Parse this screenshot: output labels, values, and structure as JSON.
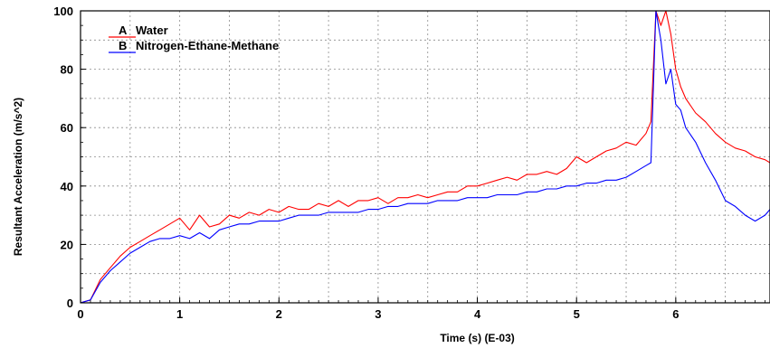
{
  "chart_data": {
    "type": "line",
    "title": "",
    "xlabel": "Time (s) (E-03)",
    "ylabel": "Resultant Acceleration (m/s^2)",
    "xlim": [
      0,
      6.95
    ],
    "ylim": [
      0,
      100
    ],
    "xticks": [
      "0",
      "1",
      "2",
      "3",
      "4",
      "5",
      "6"
    ],
    "yticks": [
      "0",
      "20",
      "40",
      "60",
      "80",
      "100"
    ],
    "grid": true,
    "legend_position": "top-left",
    "series": [
      {
        "marker": "A",
        "name": "Water",
        "color": "#ff0000",
        "x": [
          0,
          0.1,
          0.2,
          0.3,
          0.4,
          0.5,
          0.6,
          0.7,
          0.8,
          0.9,
          1.0,
          1.1,
          1.2,
          1.3,
          1.4,
          1.5,
          1.6,
          1.7,
          1.8,
          1.9,
          2.0,
          2.1,
          2.2,
          2.3,
          2.4,
          2.5,
          2.6,
          2.7,
          2.8,
          2.9,
          3.0,
          3.1,
          3.2,
          3.3,
          3.4,
          3.5,
          3.6,
          3.7,
          3.8,
          3.9,
          4.0,
          4.1,
          4.2,
          4.3,
          4.4,
          4.5,
          4.6,
          4.7,
          4.8,
          4.9,
          5.0,
          5.1,
          5.2,
          5.3,
          5.4,
          5.5,
          5.6,
          5.7,
          5.75,
          5.8,
          5.85,
          5.9,
          5.95,
          6.0,
          6.05,
          6.1,
          6.2,
          6.3,
          6.4,
          6.5,
          6.6,
          6.7,
          6.8,
          6.9,
          6.95
        ],
        "y": [
          0,
          1,
          8,
          12,
          16,
          19,
          21,
          23,
          25,
          27,
          29,
          25,
          30,
          26,
          27,
          30,
          29,
          31,
          30,
          32,
          31,
          33,
          32,
          32,
          34,
          33,
          35,
          33,
          35,
          35,
          36,
          34,
          36,
          36,
          37,
          36,
          37,
          38,
          38,
          40,
          40,
          41,
          42,
          43,
          42,
          44,
          44,
          45,
          44,
          46,
          50,
          48,
          50,
          52,
          53,
          55,
          54,
          58,
          62,
          100,
          95,
          100,
          92,
          80,
          74,
          70,
          65,
          62,
          58,
          55,
          53,
          52,
          50,
          49,
          48
        ]
      },
      {
        "marker": "B",
        "name": "Nitrogen-Ethane-Methane",
        "color": "#0000ff",
        "x": [
          0,
          0.1,
          0.2,
          0.3,
          0.4,
          0.5,
          0.6,
          0.7,
          0.8,
          0.9,
          1.0,
          1.1,
          1.2,
          1.3,
          1.4,
          1.5,
          1.6,
          1.7,
          1.8,
          1.9,
          2.0,
          2.1,
          2.2,
          2.3,
          2.4,
          2.5,
          2.6,
          2.7,
          2.8,
          2.9,
          3.0,
          3.1,
          3.2,
          3.3,
          3.4,
          3.5,
          3.6,
          3.7,
          3.8,
          3.9,
          4.0,
          4.1,
          4.2,
          4.3,
          4.4,
          4.5,
          4.6,
          4.7,
          4.8,
          4.9,
          5.0,
          5.1,
          5.2,
          5.3,
          5.4,
          5.5,
          5.6,
          5.7,
          5.75,
          5.8,
          5.85,
          5.9,
          5.95,
          6.0,
          6.05,
          6.1,
          6.2,
          6.3,
          6.4,
          6.5,
          6.6,
          6.7,
          6.8,
          6.9,
          6.95
        ],
        "y": [
          0,
          1,
          7,
          11,
          14,
          17,
          19,
          21,
          22,
          22,
          23,
          22,
          24,
          22,
          25,
          26,
          27,
          27,
          28,
          28,
          28,
          29,
          30,
          30,
          30,
          31,
          31,
          31,
          31,
          32,
          32,
          33,
          33,
          34,
          34,
          34,
          35,
          35,
          35,
          36,
          36,
          36,
          37,
          37,
          37,
          38,
          38,
          39,
          39,
          40,
          40,
          41,
          41,
          42,
          42,
          43,
          45,
          47,
          48,
          100,
          90,
          75,
          80,
          68,
          66,
          60,
          55,
          48,
          42,
          35,
          33,
          30,
          28,
          30,
          32
        ]
      }
    ]
  }
}
